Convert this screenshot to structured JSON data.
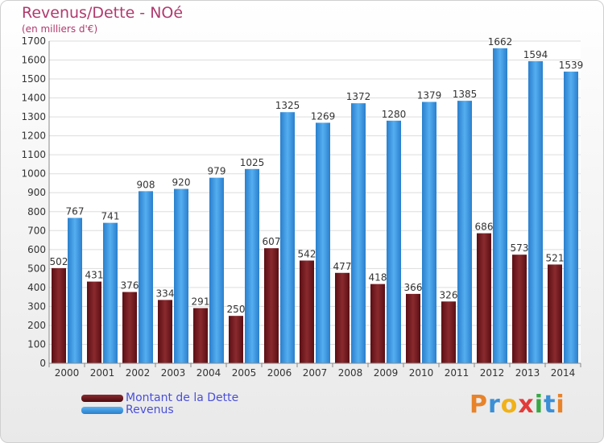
{
  "header": {
    "title": "Revenus/Dette - NOé",
    "subtitle": "(en milliers d'€)"
  },
  "logo": {
    "text": "Proxiti"
  },
  "chart_data": {
    "type": "bar",
    "title": "Revenus/Dette - NOé",
    "subtitle": "(en milliers d'€)",
    "categories": [
      "2000",
      "2001",
      "2002",
      "2003",
      "2004",
      "2005",
      "2006",
      "2007",
      "2008",
      "2009",
      "2010",
      "2011",
      "2012",
      "2013",
      "2014"
    ],
    "series": [
      {
        "name": "Montant de la Dette",
        "color": "#7a1f24",
        "values": [
          502,
          431,
          376,
          334,
          291,
          250,
          607,
          542,
          477,
          418,
          366,
          326,
          686,
          573,
          521
        ]
      },
      {
        "name": "Revenus",
        "color": "#3b97e0",
        "values": [
          767,
          741,
          908,
          920,
          979,
          1025,
          1325,
          1269,
          1372,
          1280,
          1379,
          1385,
          1662,
          1594,
          1539
        ]
      }
    ],
    "ylim": [
      0,
      1700
    ],
    "yticks": [
      0,
      100,
      200,
      300,
      400,
      500,
      600,
      700,
      800,
      900,
      1000,
      1100,
      1200,
      1300,
      1400,
      1500,
      1600,
      1700
    ],
    "grid": true,
    "legend": "bottom-left"
  }
}
